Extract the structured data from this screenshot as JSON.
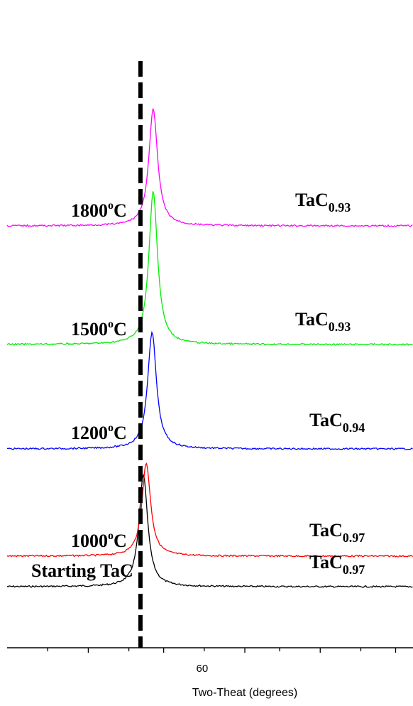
{
  "chart_data": {
    "type": "line",
    "title": "",
    "xlabel": "Two-Theat (degrees)",
    "ylabel": "",
    "xlim": [
      56.6,
      63.6
    ],
    "x_ticks": [
      57.3,
      58.0,
      58.7,
      59.3,
      60.0,
      60.7,
      61.3,
      62.0,
      62.7,
      63.3
    ],
    "x_tick_labels": [
      {
        "value": 60,
        "label": "60"
      }
    ],
    "reference_line": {
      "x": 58.9,
      "style": "dashed",
      "color": "#000000"
    },
    "grid": false,
    "legend": "none",
    "series": [
      {
        "id": "starting",
        "label": "Starting TaC",
        "label_deg": "",
        "label_unit": "",
        "composition": "TaC",
        "composition_sub": "0.97",
        "color": "#000000",
        "peak_x": 58.95,
        "peak_height": 1.05,
        "baseline_offset": 0
      },
      {
        "id": "t1000",
        "label": "1000",
        "label_deg": "o",
        "label_unit": "C",
        "composition": "TaC",
        "composition_sub": "0.97",
        "color": "#ff0000",
        "peak_x": 59.0,
        "peak_height": 1.05,
        "baseline_offset": 1
      },
      {
        "id": "t1200",
        "label": "1200",
        "label_deg": "o",
        "label_unit": "C",
        "composition": "TaC",
        "composition_sub": "0.94",
        "color": "#0000ff",
        "peak_x": 59.1,
        "peak_height": 1.1,
        "baseline_offset": 2
      },
      {
        "id": "t1500",
        "label": "1500",
        "label_deg": "o",
        "label_unit": "C",
        "composition": "TaC",
        "composition_sub": "0.93",
        "color": "#00ee00",
        "peak_x": 59.12,
        "peak_height": 1.2,
        "baseline_offset": 3
      },
      {
        "id": "t1800",
        "label": "1800",
        "label_deg": "o",
        "label_unit": "C",
        "composition": "TaC",
        "composition_sub": "0.93",
        "color": "#ff00ff",
        "peak_x": 59.12,
        "peak_height": 1.1,
        "baseline_offset": 4
      }
    ]
  }
}
